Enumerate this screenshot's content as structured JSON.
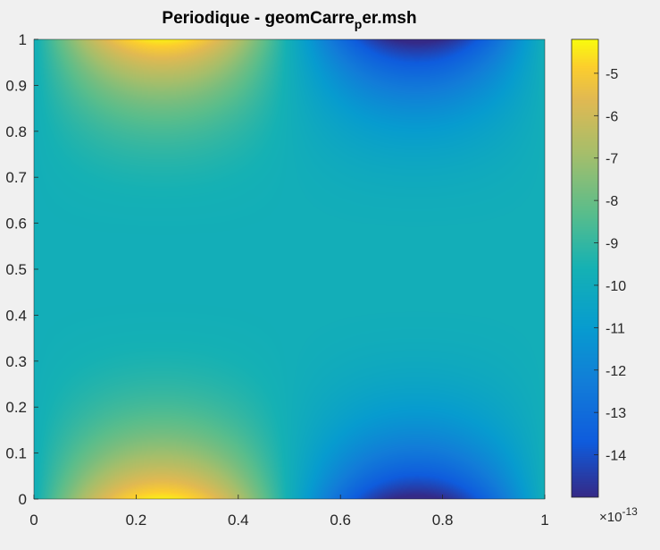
{
  "chart_data": {
    "type": "heatmap",
    "title": {
      "prefix": "Periodique - geomCarre",
      "subscript": "p",
      "suffix": "er.msh"
    },
    "xlabel": "",
    "ylabel": "",
    "xlim": [
      0,
      1
    ],
    "ylim": [
      0,
      1
    ],
    "x_ticks": [
      "0",
      "0.2",
      "0.4",
      "0.6",
      "0.8",
      "1"
    ],
    "y_ticks": [
      "0",
      "0.1",
      "0.2",
      "0.3",
      "0.4",
      "0.5",
      "0.6",
      "0.7",
      "0.8",
      "0.9",
      "1"
    ],
    "grid": false,
    "colormap": "parula",
    "colorbar": {
      "clim": [
        -15,
        -4.2
      ],
      "ticks": [
        "-5",
        "-6",
        "-7",
        "-8",
        "-9",
        "-10",
        "-11",
        "-12",
        "-13",
        "-14"
      ],
      "exponent_base": "×10",
      "exponent_power": "-13"
    },
    "field": {
      "description": "value ≈ -9.8 + 5.4·sin(2πx)·(|y−0.5|/0.5)^3 (×1e-13)",
      "mean": -9.8,
      "amplitude": 5.4,
      "min": -15,
      "max": -4.4
    }
  }
}
